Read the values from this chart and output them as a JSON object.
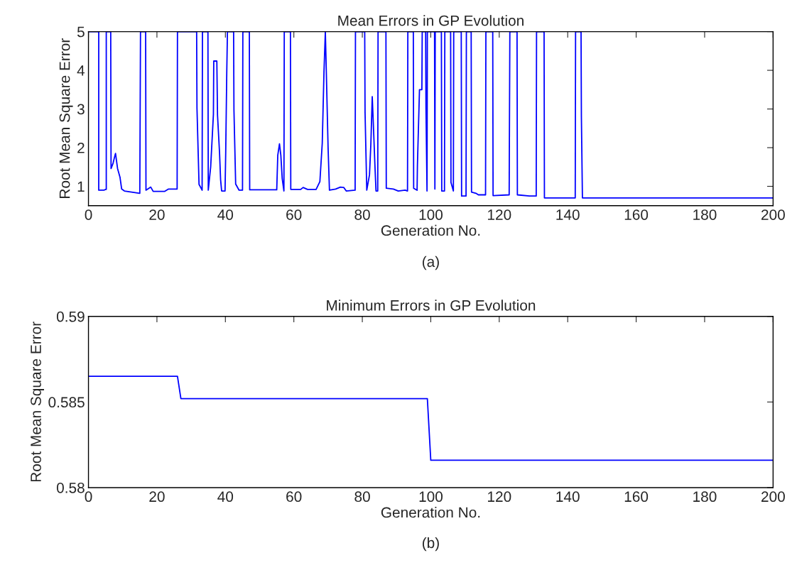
{
  "chart_data": [
    {
      "type": "line",
      "title": "Mean Errors in GP Evolution",
      "xlabel": "Generation No.",
      "ylabel": "Root Mean Square Error",
      "annotations": [
        "(a)"
      ],
      "xlim": [
        0,
        200
      ],
      "xticks": [
        0,
        20,
        40,
        60,
        80,
        100,
        120,
        140,
        160,
        180,
        200
      ],
      "ylim": [
        0.5,
        5
      ],
      "yticks": [
        1,
        2,
        3,
        4,
        5
      ],
      "grid": false,
      "legend": false,
      "marker": "none",
      "line_style": "solid",
      "series": [
        {
          "color": "#0000ff",
          "x": [
            0,
            3,
            3,
            4.5,
            5,
            5.2,
            5.2,
            6.5,
            6.6,
            7.2,
            7.6,
            7.9,
            8.5,
            9.2,
            9.7,
            10.5,
            15,
            15.2,
            16.7,
            16.8,
            18.2,
            18.9,
            22.3,
            23.4,
            25.9,
            26,
            31.6,
            31.7,
            32.3,
            33.2,
            33.3,
            34.9,
            35,
            35.7,
            36.5,
            36.6,
            37.5,
            37.7,
            38.3,
            38.6,
            38.9,
            39.9,
            40.1,
            40.4,
            40.6,
            42.4,
            42.5,
            43,
            44,
            45,
            45.1,
            47,
            47.1,
            55,
            55.3,
            55.8,
            56.2,
            56.6,
            57.1,
            57.2,
            59,
            59.1,
            62,
            62.7,
            64,
            66.5,
            67.6,
            68.3,
            68.8,
            69.2,
            69.5,
            70,
            70.4,
            72.2,
            73.6,
            74.6,
            75.3,
            77.9,
            78,
            80.7,
            80.8,
            81.3,
            82.1,
            82.5,
            82.9,
            83.2,
            83.7,
            84,
            84.5,
            84.6,
            86.9,
            87,
            89.1,
            90.5,
            92.5,
            93.2,
            93.3,
            94.9,
            95,
            96,
            96.1,
            96.7,
            97.4,
            97.5,
            98.5,
            98.6,
            98.9,
            99,
            101.1,
            101.2,
            101.3,
            103.1,
            103.2,
            104,
            104.1,
            105.8,
            105.9,
            106.6,
            106.7,
            108.9,
            109,
            110.3,
            110.4,
            111.8,
            111.9,
            113.2,
            113.9,
            116,
            116.1,
            118.1,
            118.2,
            122.9,
            123.1,
            125.2,
            125.3,
            128.8,
            130.8,
            130.9,
            133.1,
            133.2,
            142.2,
            142.3,
            143.9,
            144,
            144.3,
            200
          ],
          "values": [
            5,
            5,
            0.9,
            0.9,
            0.92,
            0.92,
            5,
            5,
            1.46,
            1.6,
            1.75,
            1.85,
            1.46,
            1.24,
            0.93,
            0.88,
            0.82,
            5,
            5,
            0.9,
            0.98,
            0.87,
            0.87,
            0.93,
            0.93,
            5,
            5,
            3.02,
            1.05,
            0.9,
            5,
            5,
            0.9,
            1.5,
            2.86,
            4.24,
            4.24,
            2.84,
            1.85,
            1.17,
            0.88,
            0.88,
            1.9,
            3.94,
            5,
            5,
            2.98,
            1.06,
            0.9,
            0.9,
            5,
            5,
            0.91,
            0.91,
            1.8,
            2.1,
            1.8,
            1.2,
            0.88,
            5,
            5,
            0.92,
            0.92,
            0.97,
            0.92,
            0.92,
            1.12,
            2.12,
            3.96,
            5,
            3.9,
            2.0,
            0.9,
            0.93,
            0.98,
            0.97,
            0.88,
            0.9,
            5,
            5,
            2.92,
            0.9,
            1.3,
            2.1,
            3.32,
            2.66,
            1.5,
            0.88,
            0.88,
            5,
            5,
            0.95,
            0.93,
            0.88,
            0.9,
            0.88,
            5,
            5,
            0.95,
            0.9,
            1.55,
            3.5,
            3.5,
            5,
            5,
            3.0,
            0.88,
            5,
            5,
            0.93,
            5,
            5,
            0.88,
            0.88,
            5,
            5,
            1.1,
            0.88,
            5,
            5,
            0.75,
            0.75,
            5,
            5,
            0.85,
            0.82,
            0.78,
            0.78,
            5,
            5,
            0.76,
            0.78,
            5,
            5,
            0.78,
            0.75,
            0.75,
            5,
            5,
            0.7,
            0.7,
            5,
            5,
            2.8,
            0.7,
            0.7
          ]
        }
      ]
    },
    {
      "type": "line",
      "title": "Minimum Errors in GP Evolution",
      "xlabel": "Generation No.",
      "ylabel": "Root Mean Square Error",
      "annotations": [
        "(b)"
      ],
      "xlim": [
        0,
        200
      ],
      "xticks": [
        0,
        20,
        40,
        60,
        80,
        100,
        120,
        140,
        160,
        180,
        200
      ],
      "ylim": [
        0.58,
        0.59
      ],
      "yticks": [
        0.58,
        0.585,
        0.59
      ],
      "grid": false,
      "legend": false,
      "marker": "none",
      "line_style": "solid",
      "series": [
        {
          "color": "#0000ff",
          "x": [
            0,
            26,
            27,
            99,
            100,
            200
          ],
          "values": [
            0.5865,
            0.5865,
            0.5852,
            0.5852,
            0.5816,
            0.5816
          ]
        }
      ]
    }
  ]
}
